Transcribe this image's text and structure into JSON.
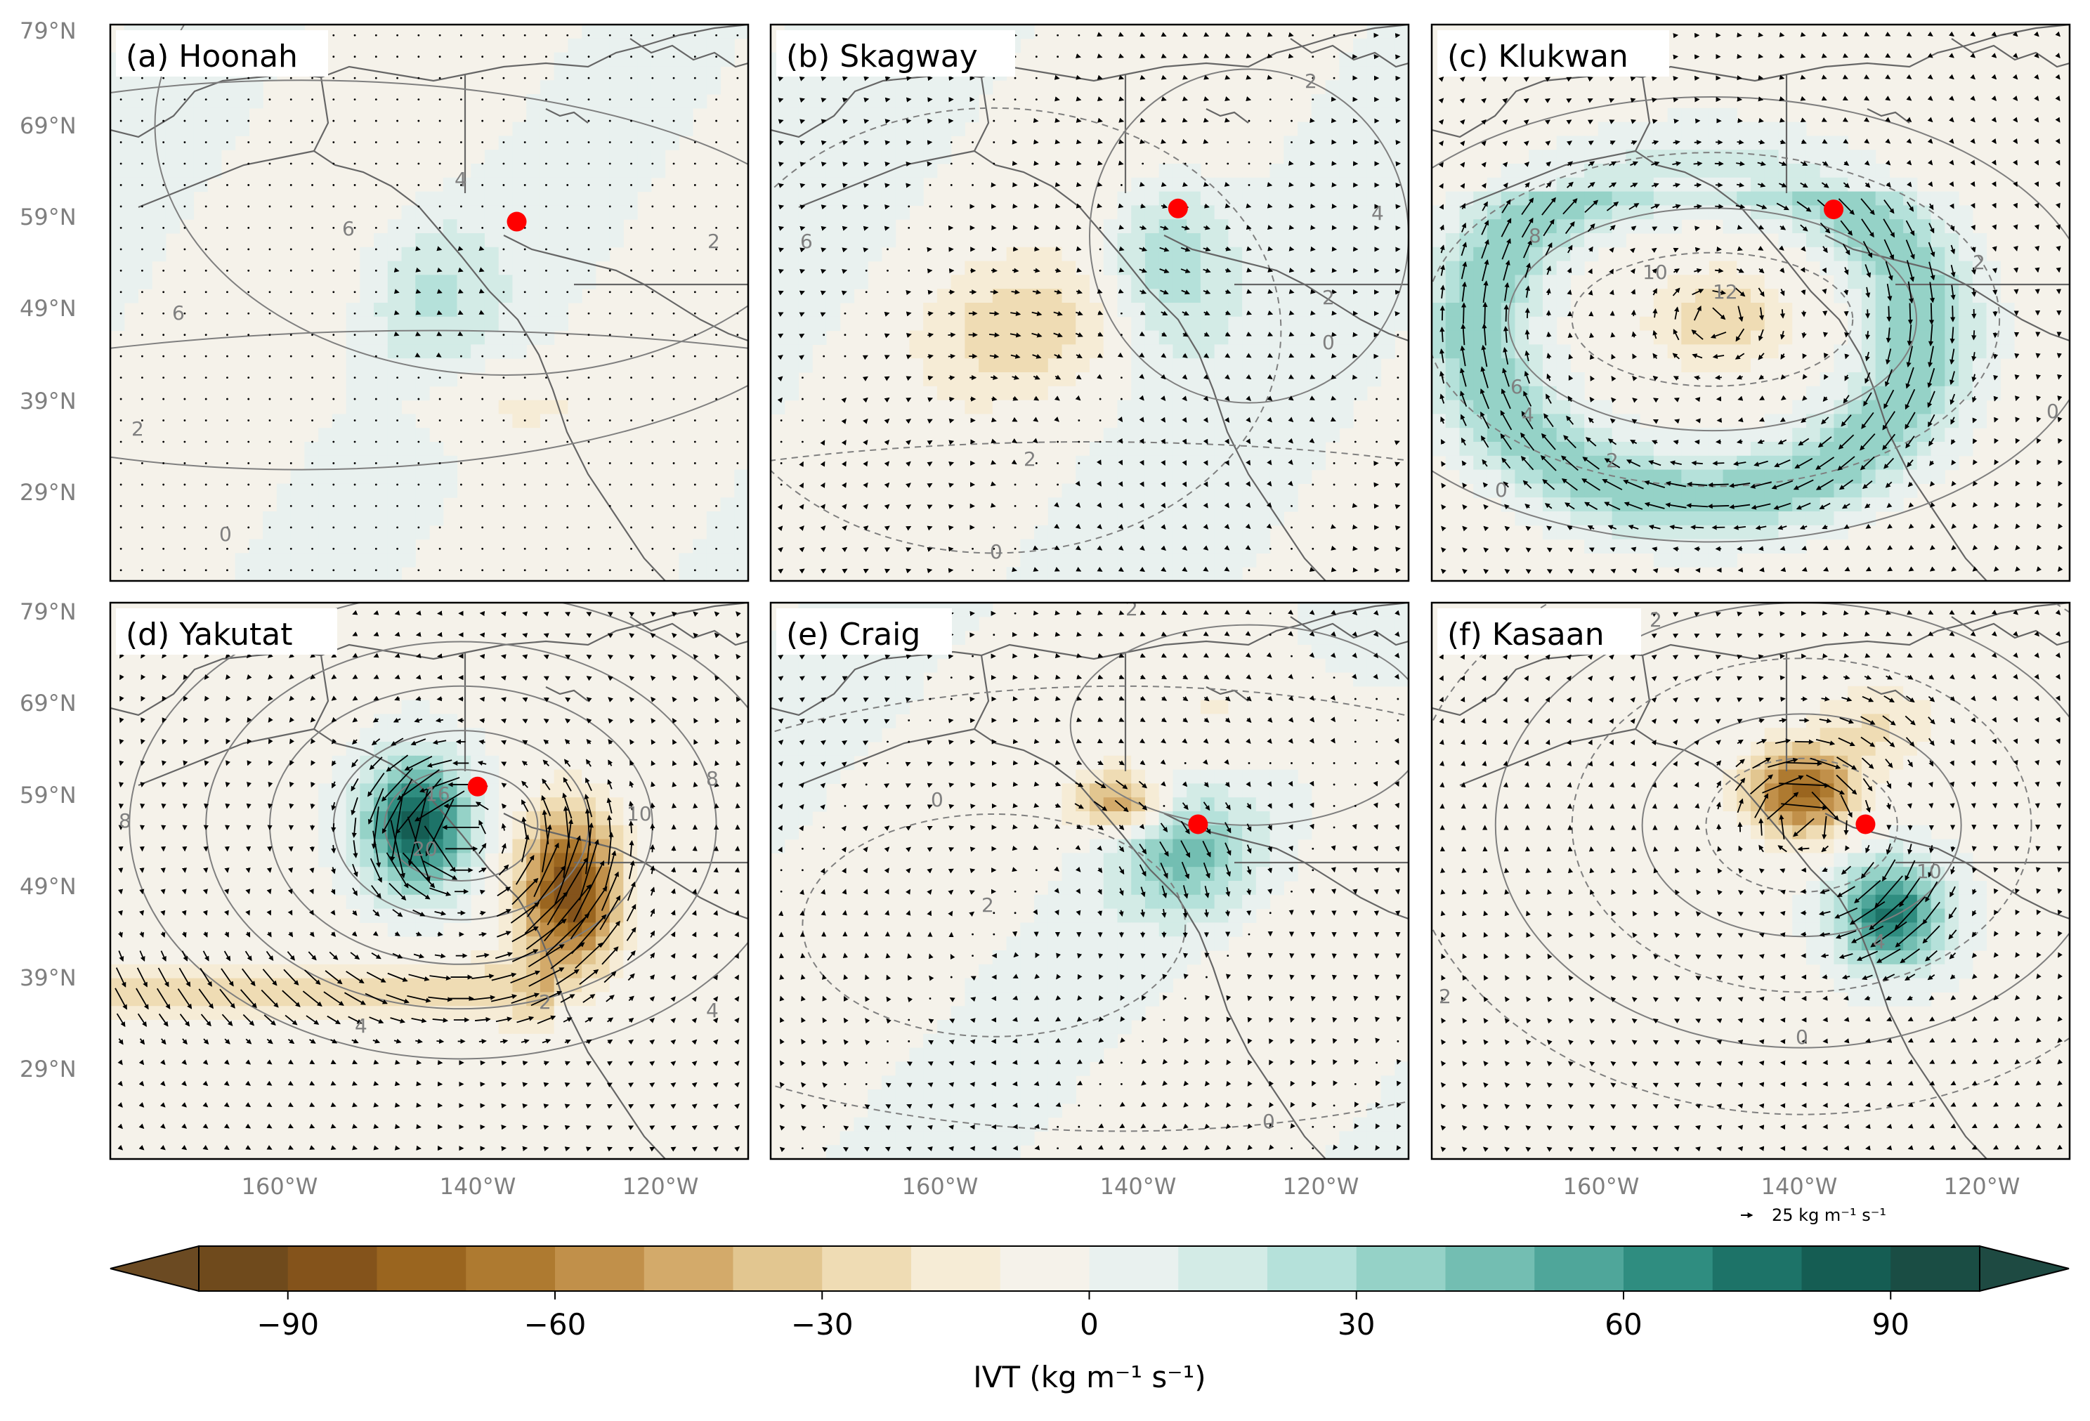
{
  "panels": [
    {
      "label": "(a) Hoonah",
      "site": {
        "lon": -135.4,
        "lat": 58.1
      }
    },
    {
      "label": "(b) Skagway",
      "site": {
        "lon": -135.3,
        "lat": 59.5
      }
    },
    {
      "label": "(c) Klukwan",
      "site": {
        "lon": -135.9,
        "lat": 59.4
      }
    },
    {
      "label": "(d) Yakutat",
      "site": {
        "lon": -139.7,
        "lat": 59.5
      }
    },
    {
      "label": "(e) Craig",
      "site": {
        "lon": -133.1,
        "lat": 55.5
      }
    },
    {
      "label": "(f) Kasaan",
      "site": {
        "lon": -132.4,
        "lat": 55.5
      }
    }
  ],
  "axes": {
    "lon_range": [
      -180,
      -110
    ],
    "lat_range": [
      20,
      79
    ],
    "lat_ticks": [
      {
        "value": 79,
        "label": "79°N"
      },
      {
        "value": 69,
        "label": "69°N"
      },
      {
        "value": 59,
        "label": "59°N"
      },
      {
        "value": 49,
        "label": "49°N"
      },
      {
        "value": 39,
        "label": "39°N"
      },
      {
        "value": 29,
        "label": "29°N"
      }
    ],
    "lon_ticks": [
      {
        "value": -160,
        "label": "160°W"
      },
      {
        "value": -140,
        "label": "140°W"
      },
      {
        "value": -120,
        "label": "120°W"
      }
    ]
  },
  "contour_labels": [
    [
      "4",
      "6",
      "6",
      "2",
      "0",
      "2"
    ],
    [
      "6",
      "4",
      "2",
      "2",
      "0",
      "2",
      "0"
    ],
    [
      "8",
      "10",
      "12",
      "6",
      "4",
      "2",
      "0",
      "2",
      "0"
    ],
    [
      "8",
      "16",
      "20",
      "10",
      "8",
      "4",
      "2",
      "4"
    ],
    [
      "2",
      "2",
      "0",
      "0"
    ],
    [
      "2",
      "10",
      "4",
      "2",
      "0"
    ]
  ],
  "reference_vector": {
    "label": "25 kg m⁻¹ s⁻¹",
    "magnitude": 25
  },
  "colorbar": {
    "label": "IVT (kg m⁻¹ s⁻¹)",
    "min": -100,
    "max": 100,
    "step": 10,
    "ticks": [
      {
        "value": -90,
        "label": "−90"
      },
      {
        "value": -60,
        "label": "−60"
      },
      {
        "value": -30,
        "label": "−30"
      },
      {
        "value": 0,
        "label": "0"
      },
      {
        "value": 30,
        "label": "30"
      },
      {
        "value": 60,
        "label": "60"
      },
      {
        "value": 90,
        "label": "90"
      }
    ],
    "colors": [
      "#6f4a1c",
      "#84531b",
      "#9a651f",
      "#ae7a30",
      "#c1904a",
      "#d3aa6a",
      "#e2c690",
      "#efdcb4",
      "#f6ecd6",
      "#f5f2ea",
      "#e9f1ef",
      "#d3ebe6",
      "#b5e1da",
      "#95d2c7",
      "#73beb2",
      "#4fa69a",
      "#2f8d80",
      "#1d7368",
      "#155d53",
      "#1a4d44"
    ],
    "under_color": "#6b4a22",
    "over_color": "#1e4a42"
  },
  "colors": {
    "land_background": "#f5f2ea",
    "coastline": "#666666",
    "contour": "#7f7f7f",
    "vector": "#000000",
    "site_marker": "#ff0000"
  }
}
